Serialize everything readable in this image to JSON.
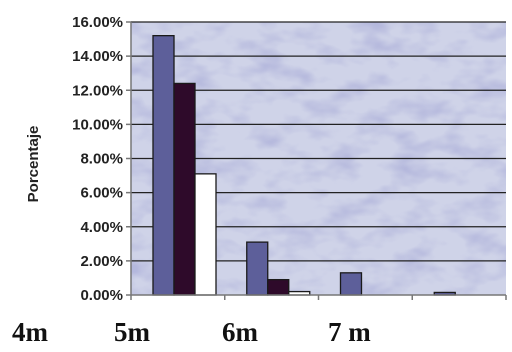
{
  "chart_data": {
    "type": "bar",
    "title": "",
    "xlabel": "",
    "ylabel": "Porcentaje",
    "ylim": [
      0,
      16
    ],
    "y_ticks": [
      {
        "value": 0,
        "label": "0.00%"
      },
      {
        "value": 2,
        "label": "2.00%"
      },
      {
        "value": 4,
        "label": "4.00%"
      },
      {
        "value": 6,
        "label": "6.00%"
      },
      {
        "value": 8,
        "label": "8.00%"
      },
      {
        "value": 10,
        "label": "10.00%"
      },
      {
        "value": 12,
        "label": "12.00%"
      },
      {
        "value": 14,
        "label": "14.00%"
      },
      {
        "value": 16,
        "label": "16.00%"
      }
    ],
    "categories": [
      "4m",
      "5m",
      "6m",
      "7 m"
    ],
    "series": [
      {
        "values": [
          15.2,
          3.1,
          1.3,
          0.15
        ]
      },
      {
        "values": [
          12.4,
          0.9,
          0,
          0
        ]
      },
      {
        "values": [
          7.1,
          0.2,
          0,
          0
        ]
      }
    ],
    "grid": true,
    "legend": "none",
    "colors": {
      "series": [
        "#5d5f9a",
        "#2e0a2a",
        "#ffffff"
      ],
      "bar_stroke": "#1a1a1a",
      "grid": "#222222",
      "axis": "#777777",
      "plot_bg": "#cfd3e8",
      "texture": "#8a8fc0"
    }
  }
}
